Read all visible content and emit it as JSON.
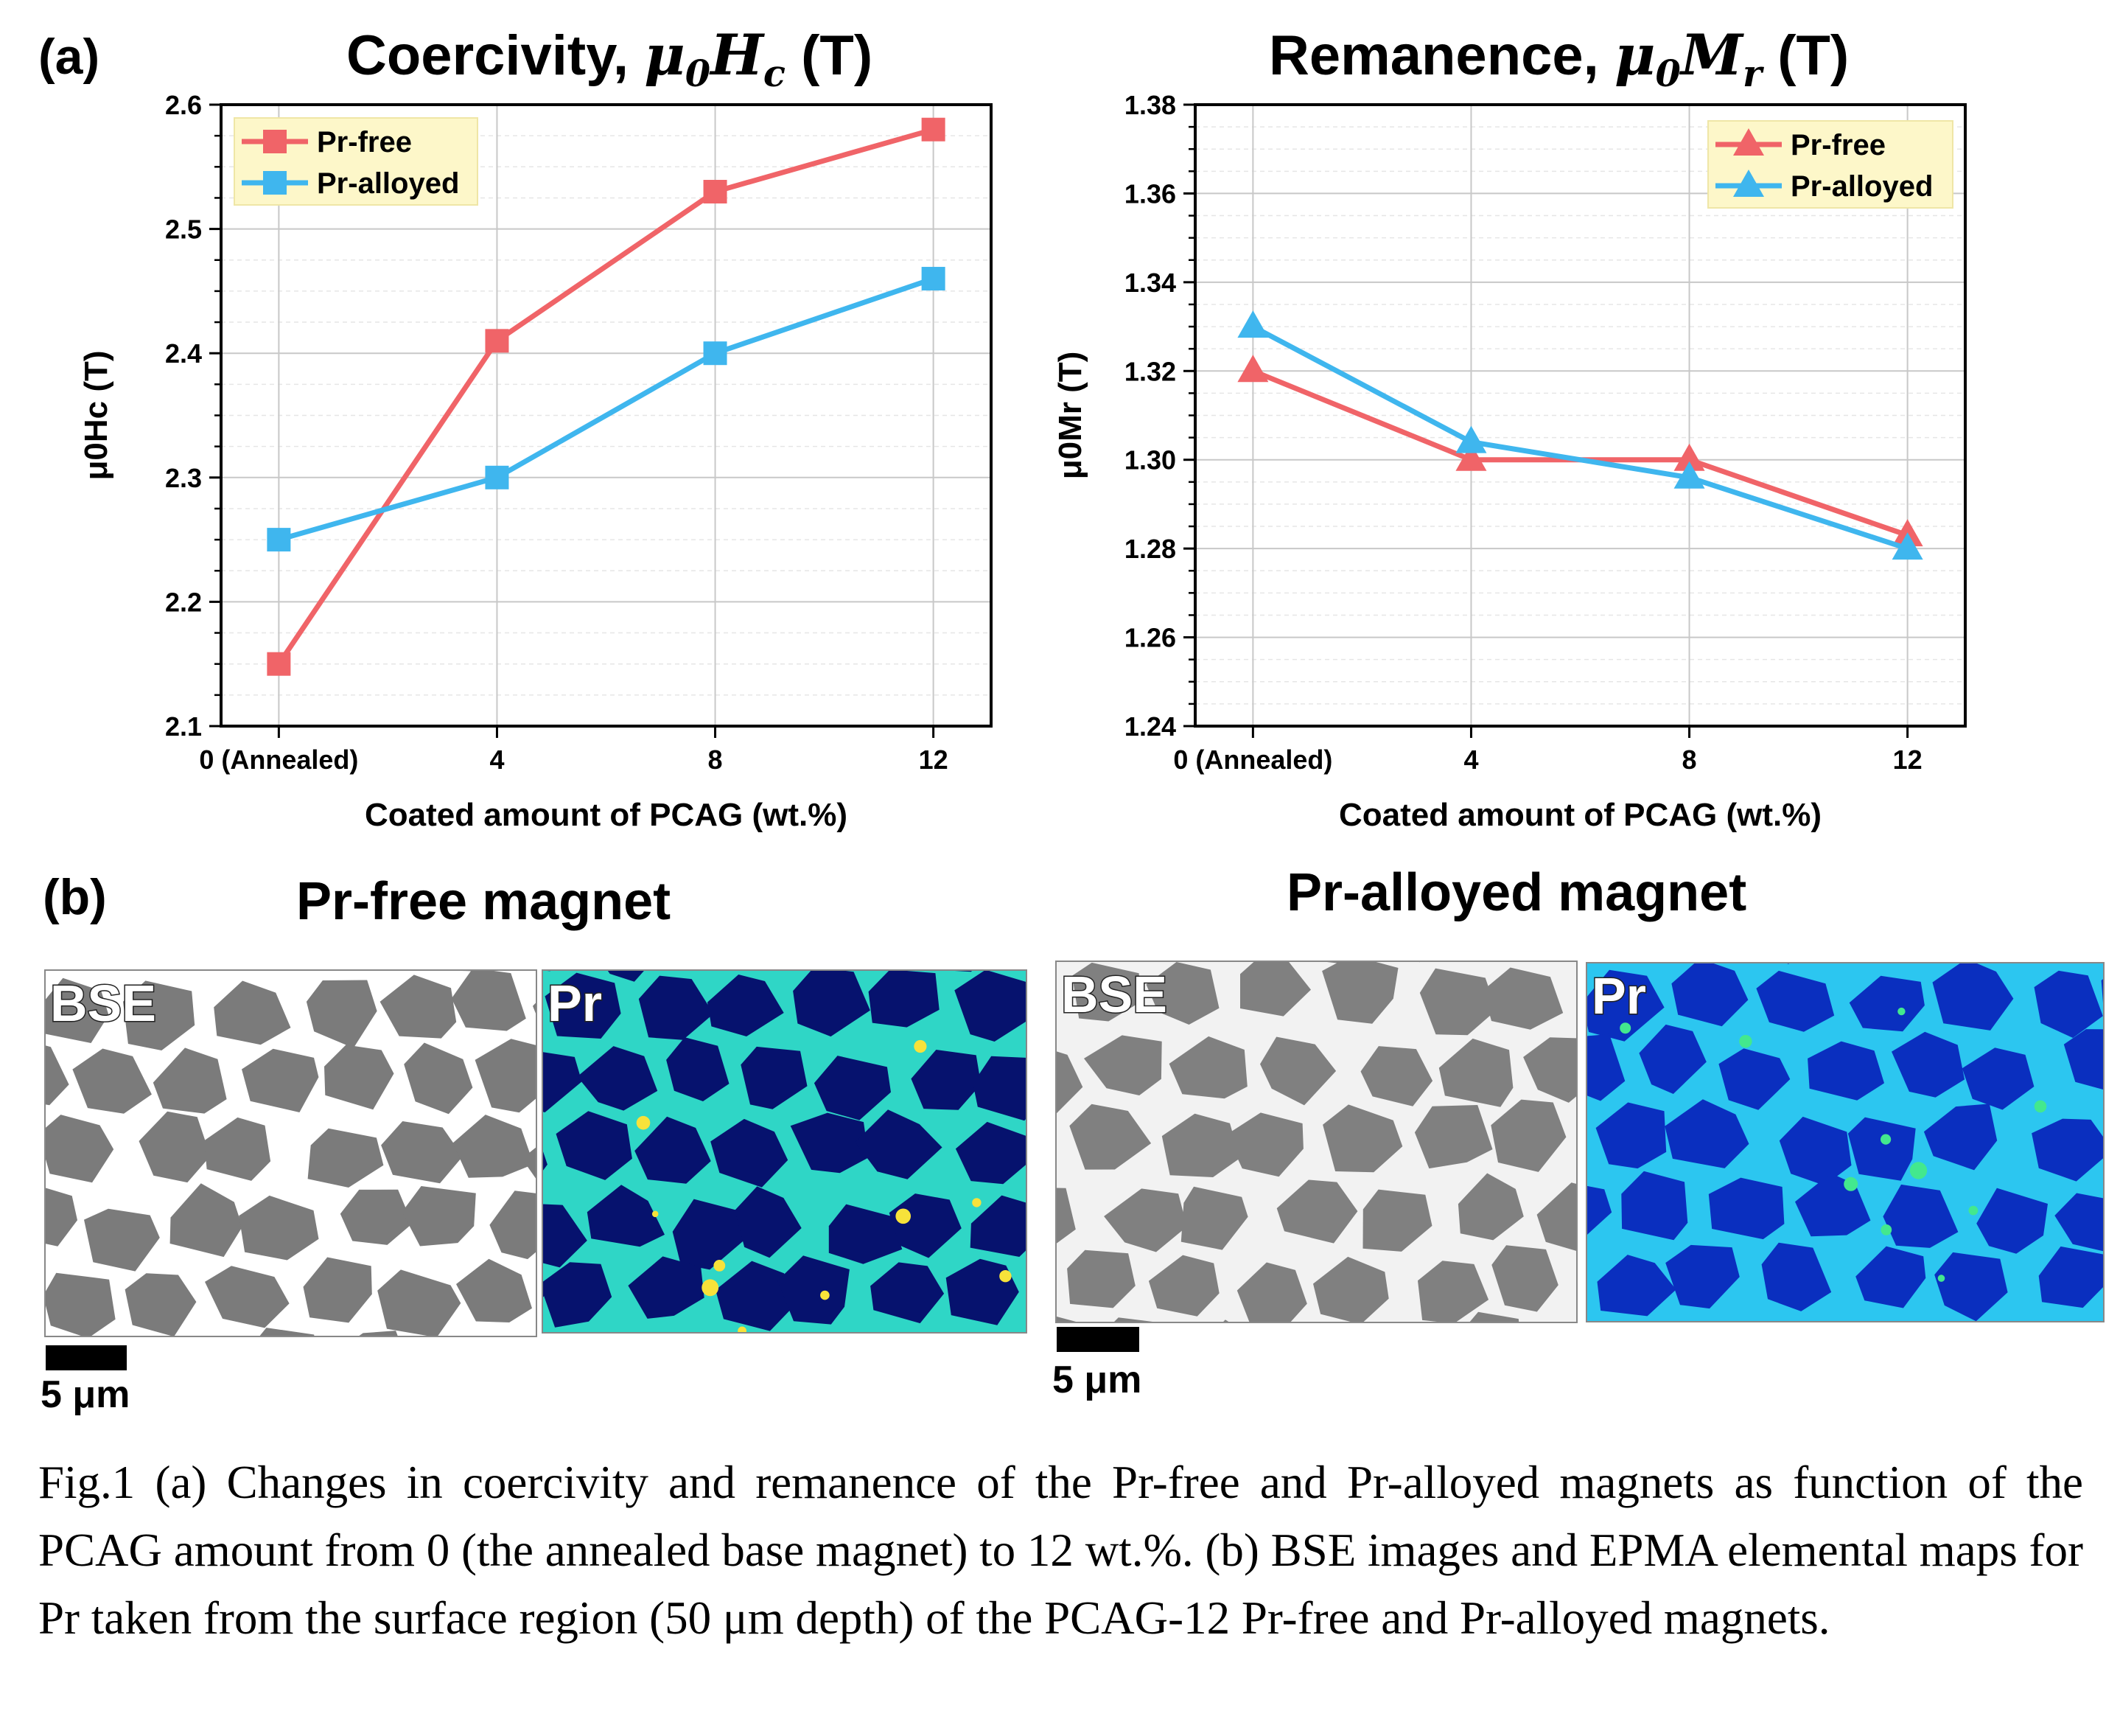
{
  "panels": {
    "a_label": "(a)",
    "b_label": "(b)"
  },
  "chart_data": [
    {
      "type": "line",
      "title_prefix": "Coercivity, ",
      "title_math": "μ0Hc",
      "title_suffix": " (T)",
      "xlabel": "Coated amount of PCAG  (wt.%)",
      "ylabel": "μ0Hc (T)",
      "categories": [
        "0 (Annealed)",
        "4",
        "8",
        "12"
      ],
      "ylim": [
        2.1,
        2.6
      ],
      "yticks": [
        "2.1",
        "2.2",
        "2.3",
        "2.4",
        "2.5",
        "2.6"
      ],
      "grid": true,
      "legend_position": "top-left",
      "marker": "square",
      "series": [
        {
          "name": "Pr-free",
          "color": "#f06468",
          "values": [
            2.15,
            2.41,
            2.53,
            2.58
          ]
        },
        {
          "name": "Pr-alloyed",
          "color": "#3fb6ee",
          "values": [
            2.25,
            2.3,
            2.4,
            2.46
          ]
        }
      ]
    },
    {
      "type": "line",
      "title_prefix": "Remanence, ",
      "title_math": "μ0Mr",
      "title_suffix": " (T)",
      "xlabel": "Coated amount of PCAG  (wt.%)",
      "ylabel": "μ0Mr (T)",
      "categories": [
        "0 (Annealed)",
        "4",
        "8",
        "12"
      ],
      "ylim": [
        1.24,
        1.38
      ],
      "yticks": [
        "1.24",
        "1.26",
        "1.28",
        "1.30",
        "1.32",
        "1.34",
        "1.36",
        "1.38"
      ],
      "grid": true,
      "legend_position": "top-right",
      "marker": "triangle",
      "series": [
        {
          "name": "Pr-free",
          "color": "#f06468",
          "values": [
            1.32,
            1.3,
            1.3,
            1.283
          ]
        },
        {
          "name": "Pr-alloyed",
          "color": "#3fb6ee",
          "values": [
            1.33,
            1.304,
            1.296,
            1.28
          ]
        }
      ]
    }
  ],
  "micrographs": {
    "pr_free_title": "Pr-free magnet",
    "pr_alloyed_title": "Pr-alloyed magnet",
    "bse_label": "BSE",
    "pr_label": "Pr",
    "scale_label": "5 μm"
  },
  "caption": "Fig.1 (a) Changes in coercivity and remanence of the Pr-free and Pr-alloyed magnets as function of the PCAG amount from 0 (the annealed base magnet) to 12 wt.%. (b) BSE images and EPMA elemental maps for Pr taken from the surface region (50 μm depth) of the PCAG-12 Pr-free and Pr-alloyed magnets."
}
